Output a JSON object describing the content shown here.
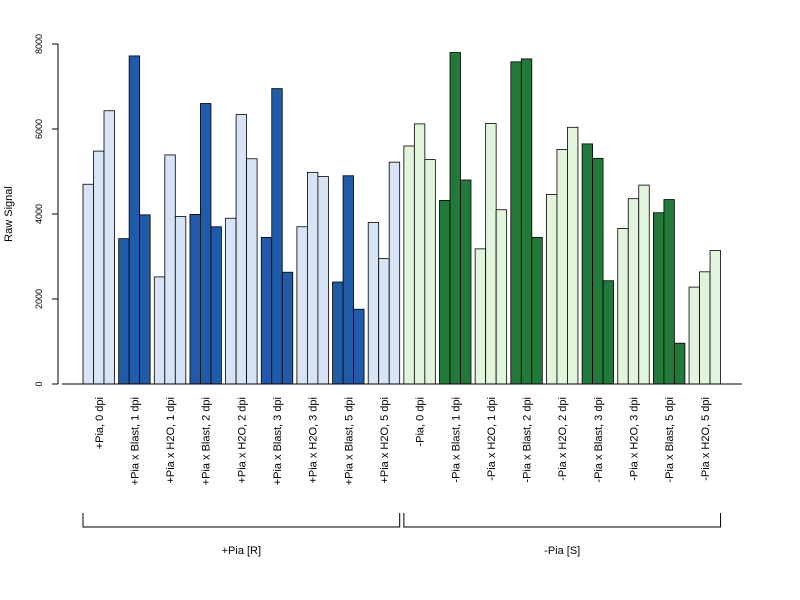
{
  "chart_data": {
    "type": "bar",
    "ylabel": "Raw Signal",
    "ylim": [
      0,
      8000
    ],
    "yticks": [
      0,
      2000,
      4000,
      6000,
      8000
    ],
    "grid": false,
    "categories": [
      "+Pia, 0 dpi",
      "+Pia x Blast, 1 dpi",
      "+Pia x H2O, 1 dpi",
      "+Pia x Blast, 2 dpi",
      "+Pia x H2O, 2 dpi",
      "+Pia x Blast, 3 dpi",
      "+Pia x H2O, 3 dpi",
      "+Pia x Blast, 5 dpi",
      "+Pia x H2O, 5 dpi",
      "-Pia, 0 dpi",
      "-Pia x Blast, 1 dpi",
      "-Pia x H2O, 1 dpi",
      "-Pia x Blast, 2 dpi",
      "-Pia x H2O, 2 dpi",
      "-Pia x Blast, 3 dpi",
      "-Pia x H2O, 3 dpi",
      "-Pia x Blast, 5 dpi",
      "-Pia x H2O, 5 dpi"
    ],
    "replicates": [
      [
        4700,
        5480,
        6430
      ],
      [
        3420,
        7720,
        3980
      ],
      [
        2520,
        5390,
        3940
      ],
      [
        3990,
        6600,
        3700
      ],
      [
        3900,
        6340,
        5300
      ],
      [
        3450,
        6950,
        2630
      ],
      [
        3700,
        4980,
        4880
      ],
      [
        2400,
        4900,
        1760
      ],
      [
        3800,
        2950,
        5220
      ],
      [
        5600,
        6120,
        5280
      ],
      [
        4320,
        7800,
        4800
      ],
      [
        3180,
        6130,
        4100
      ],
      [
        7580,
        7650,
        3450
      ],
      [
        4460,
        5520,
        6040
      ],
      [
        5650,
        5310,
        2430
      ],
      [
        3660,
        4360,
        4680
      ],
      [
        4030,
        4340,
        960
      ],
      [
        2280,
        2640,
        3140
      ]
    ],
    "bar_colors": [
      "#d6e4f5",
      "#1f5ba8",
      "#d6e4f5",
      "#1f5ba8",
      "#d6e4f5",
      "#1f5ba8",
      "#d6e4f5",
      "#1f5ba8",
      "#d6e4f5",
      "#e2f4dc",
      "#217a3a",
      "#e2f4dc",
      "#217a3a",
      "#e2f4dc",
      "#217a3a",
      "#e2f4dc",
      "#217a3a",
      "#e2f4dc"
    ],
    "groups": [
      {
        "label": "+Pia [R]",
        "from": 0,
        "to": 8
      },
      {
        "label": "-Pia [S]",
        "from": 9,
        "to": 17
      }
    ]
  }
}
